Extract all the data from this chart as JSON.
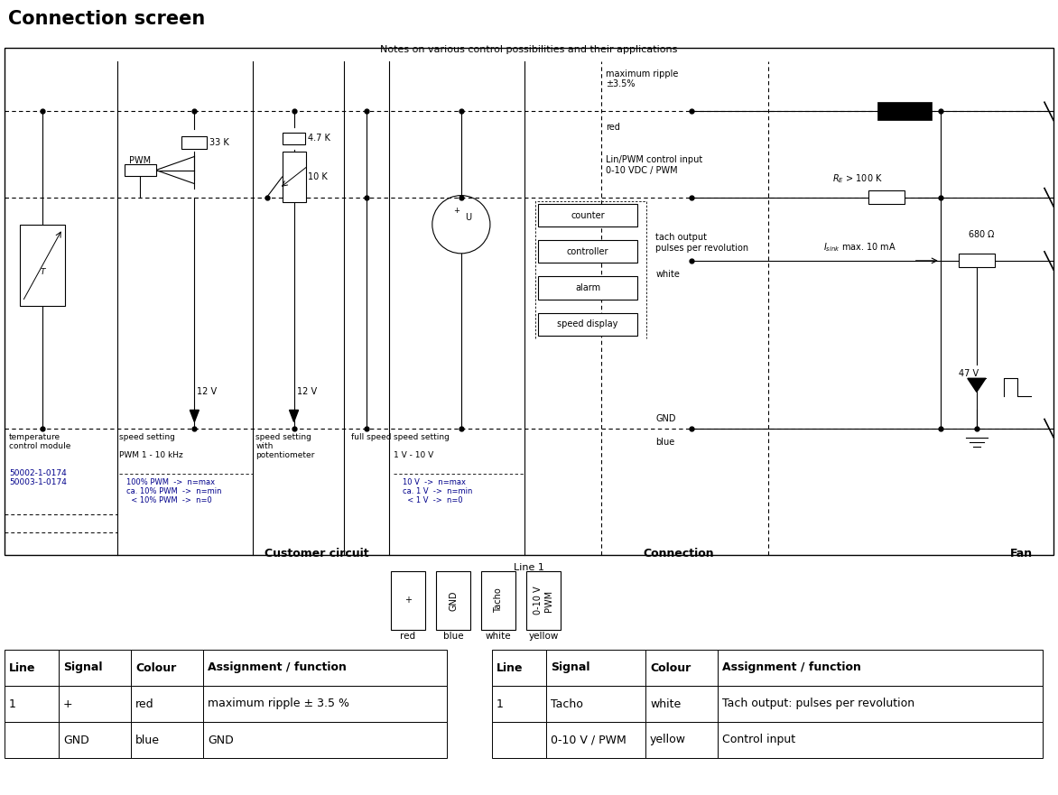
{
  "title": "Connection screen",
  "title_bg": "#d6e8f7",
  "notes_text": "Notes on various control possibilities and their applications",
  "customer_circuit_label": "Customer circuit",
  "connection_label": "Connection",
  "fan_label": "Fan",
  "line1_label": "Line 1",
  "bottom_bg": "#c8c8c8",
  "connector_labels": [
    "+",
    "GND",
    "Tacho",
    "0-10 V\nPWM"
  ],
  "connector_colors_text": [
    "red",
    "blue",
    "white",
    "yellow"
  ],
  "blue_text_color": "#00008b",
  "table_left_headers": [
    "Line",
    "Signal",
    "Colour",
    "Assignment / function"
  ],
  "table_left_rows": [
    [
      "1",
      "+",
      "red",
      "maximum ripple ± 3.5 %"
    ],
    [
      "",
      "GND",
      "blue",
      "GND"
    ]
  ],
  "table_right_headers": [
    "Line",
    "Signal",
    "Colour",
    "Assignment / function"
  ],
  "table_right_rows": [
    [
      "1",
      "Tacho",
      "white",
      "Tach output: pulses per revolution"
    ],
    [
      "",
      "0-10 V / PWM",
      "yellow",
      "Control input"
    ]
  ]
}
